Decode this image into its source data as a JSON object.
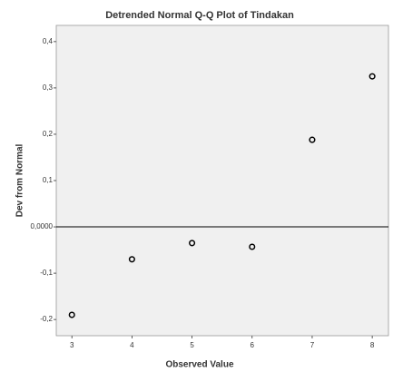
{
  "chart_data": {
    "type": "scatter",
    "title": "Detrended Normal Q-Q Plot of Tindakan",
    "x_label": "Observed Value",
    "y_label": "Dev from Normal",
    "x": [
      3,
      4,
      5,
      6,
      7,
      8
    ],
    "values": [
      -0.19,
      -0.07,
      -0.035,
      -0.043,
      0.188,
      0.325
    ],
    "color": "#000000",
    "xlim": [
      2.74,
      8.27
    ],
    "ylim": [
      -0.235,
      0.435
    ],
    "xticks": [
      3,
      4,
      5,
      6,
      7,
      8
    ],
    "yticks": [
      {
        "value": 0.4,
        "label": "0,4"
      },
      {
        "value": 0.3,
        "label": "0,3"
      },
      {
        "value": 0.2,
        "label": "0,2"
      },
      {
        "value": 0.1,
        "label": "0,1"
      },
      {
        "value": 0,
        "label": "0,0000"
      },
      {
        "value": -0.1,
        "label": "-0,1"
      },
      {
        "value": -0.2,
        "label": "-0,2"
      }
    ],
    "reference_line": 0
  }
}
